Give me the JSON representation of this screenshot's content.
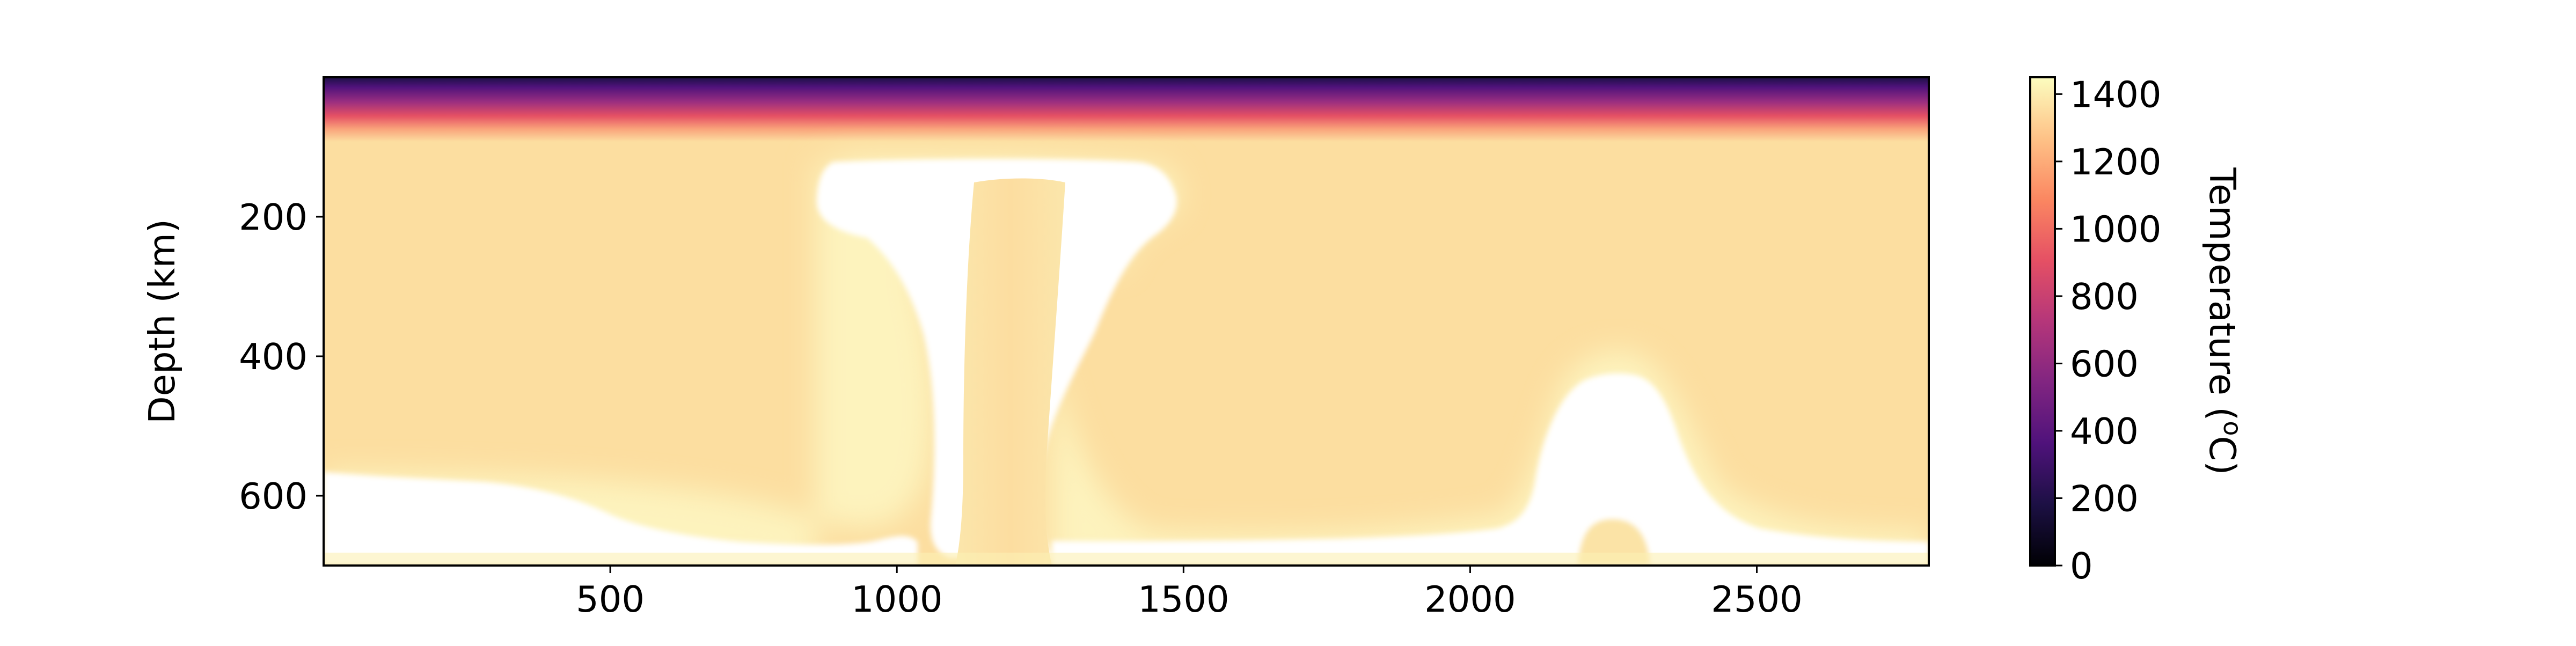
{
  "chart_data": {
    "type": "heatmap",
    "title": "",
    "xlabel": "",
    "ylabel": "Depth (km)",
    "x_range": [
      0,
      2800
    ],
    "y_range": [
      0,
      700
    ],
    "y_inverted": true,
    "x_ticks": [
      500,
      1000,
      1500,
      2000,
      2500
    ],
    "x_tick_labels": [
      "500",
      "1000",
      "1500",
      "2000",
      "2500"
    ],
    "y_ticks": [
      200,
      400,
      600
    ],
    "y_tick_labels": [
      "200",
      "400",
      "600"
    ],
    "colormap": "magma",
    "colorbar": {
      "label": "Temperature (",
      "label_super": "o",
      "label_end": "C)",
      "range": [
        0,
        1450
      ],
      "ticks": [
        0,
        200,
        400,
        600,
        800,
        1000,
        1200,
        1400
      ],
      "tick_labels": [
        "0",
        "200",
        "400",
        "600",
        "800",
        "1000",
        "1200",
        "1400"
      ]
    },
    "field": {
      "mantle_temperature": 1320,
      "surface_temperature": 0,
      "lithosphere_base_depth": 90,
      "hot_regions": [
        {
          "name": "plume-head",
          "x_min": 860,
          "x_max": 1530,
          "depth_min": 125,
          "depth_max": 240,
          "temperature": 1450
        },
        {
          "name": "plume-conduit",
          "x_min": 1000,
          "x_max": 1390,
          "depth_min": 200,
          "depth_max": 700,
          "temperature": 1450
        },
        {
          "name": "basal-layer-left",
          "x_min": 0,
          "x_max": 1000,
          "depth_min": 575,
          "depth_max": 700,
          "temperature": 1450
        },
        {
          "name": "basal-layer-right",
          "x_min": 1380,
          "x_max": 2800,
          "depth_min": 640,
          "depth_max": 700,
          "temperature": 1450
        },
        {
          "name": "upwelling-right",
          "x_min": 2050,
          "x_max": 2520,
          "depth_min": 420,
          "depth_max": 700,
          "temperature": 1450
        }
      ]
    }
  },
  "colors": {
    "mantle": "#fcdea0",
    "conduit": "#fbe3a6",
    "hot": "#ffffff",
    "magma_stops": [
      "#000004",
      "#1c1044",
      "#4f127b",
      "#812581",
      "#b5367a",
      "#e55064",
      "#fb8761",
      "#fec287",
      "#fcfdbf"
    ]
  }
}
